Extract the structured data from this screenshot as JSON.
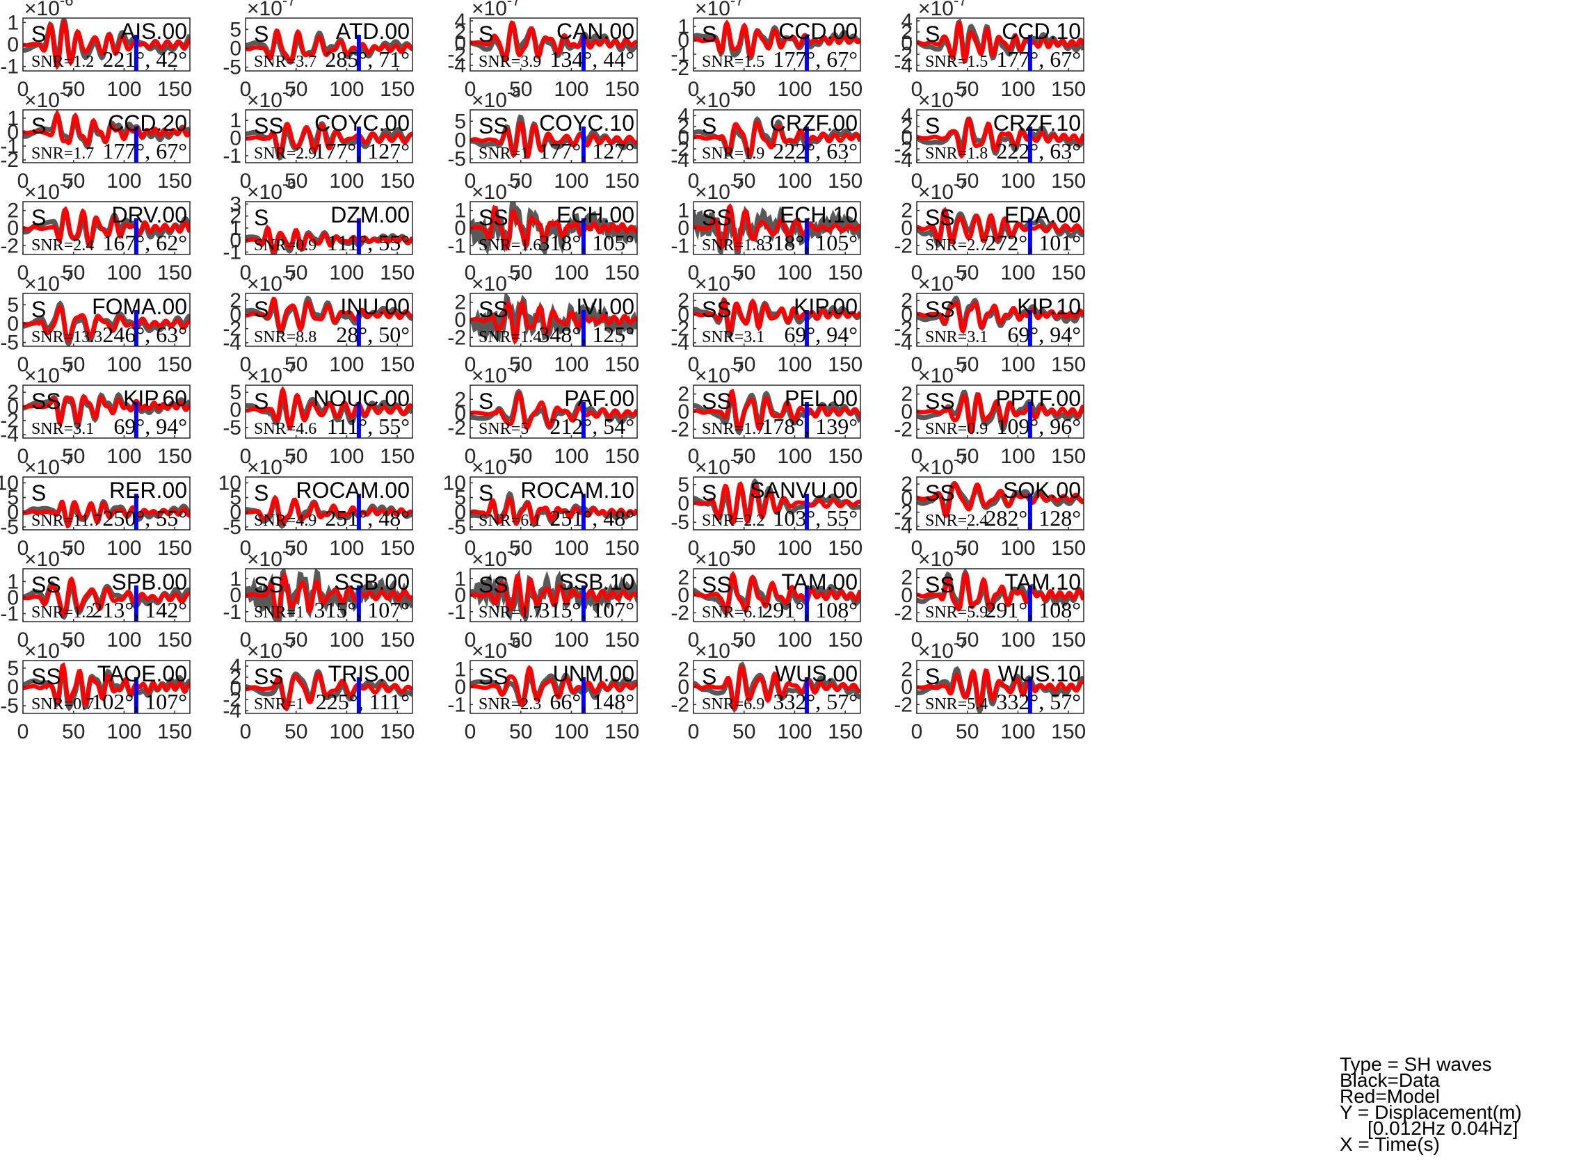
{
  "chart_data": {
    "type": "line",
    "xlim": [
      0,
      165
    ],
    "xticks": [
      0,
      50,
      100,
      150
    ],
    "colors": {
      "data": "#595959",
      "model": "#ff0000",
      "marker": "#0000ff"
    },
    "legend": {
      "lines": [
        "Type = SH waves",
        "Black=Data",
        "Red=Model",
        "Y = Displacement(m)",
        "[0.012Hz 0.04Hz]",
        "X = Time(s)"
      ],
      "placement": "bottom-right"
    },
    "panels": [
      {
        "station": "AIS.00",
        "phase": "S",
        "snr": "SNR=1.2",
        "angles": "221°, 42°",
        "exp": "-6",
        "yticks": [
          "1",
          "0",
          "-1"
        ],
        "ylim": [
          -1.2,
          1.2
        ]
      },
      {
        "station": "ATD.00",
        "phase": "S",
        "snr": "SNR=3.7",
        "angles": "285°, 71°",
        "exp": "-7",
        "yticks": [
          "5",
          "0",
          "-5"
        ],
        "ylim": [
          -6,
          8
        ]
      },
      {
        "station": "CAN.00",
        "phase": "S",
        "snr": "SNR=3.9",
        "angles": "134°, 44°",
        "exp": "-7",
        "yticks": [
          "4",
          "2",
          "0",
          "-2",
          "-4"
        ],
        "ylim": [
          -5,
          4.5
        ]
      },
      {
        "station": "CCD.00",
        "phase": "S",
        "snr": "SNR=1.5",
        "angles": "177°, 67°",
        "exp": "-7",
        "yticks": [
          "1",
          "0",
          "-1",
          "-2"
        ],
        "ylim": [
          -2.2,
          1.6
        ]
      },
      {
        "station": "CCD.10",
        "phase": "S",
        "snr": "SNR=1.5",
        "angles": "177°, 67°",
        "exp": "-7",
        "yticks": [
          "4",
          "2",
          "0",
          "-2",
          "-4"
        ],
        "ylim": [
          -5,
          4.5
        ]
      },
      {
        "station": "CCD.20",
        "phase": "S",
        "snr": "SNR=1.7",
        "angles": "177°, 67°",
        "exp": "-7",
        "yticks": [
          "1",
          "0",
          "-1",
          "-2"
        ],
        "ylim": [
          -2.2,
          1.6
        ]
      },
      {
        "station": "COYC.00",
        "phase": "SS",
        "snr": "SNR=2.9",
        "angles": "177°, 127°",
        "exp": "-7",
        "yticks": [
          "1",
          "0",
          "-1"
        ],
        "ylim": [
          -1.4,
          1.6
        ]
      },
      {
        "station": "COYC.10",
        "phase": "SS",
        "snr": "SNR=1",
        "angles": "177°, 127°",
        "exp": "-8",
        "yticks": [
          "5",
          "0",
          "-5"
        ],
        "ylim": [
          -6,
          8
        ]
      },
      {
        "station": "CRZF.00",
        "phase": "S",
        "snr": "SNR=1.9",
        "angles": "222°, 63°",
        "exp": "-7",
        "yticks": [
          "4",
          "2",
          "0",
          "-2",
          "-4"
        ],
        "ylim": [
          -4.5,
          5
        ]
      },
      {
        "station": "CRZF.10",
        "phase": "S",
        "snr": "SNR=1.8",
        "angles": "222°, 63°",
        "exp": "-7",
        "yticks": [
          "4",
          "2",
          "0",
          "-2",
          "-4"
        ],
        "ylim": [
          -4.5,
          5
        ]
      },
      {
        "station": "DRV.00",
        "phase": "S",
        "snr": "SNR=2.4",
        "angles": "167°, 62°",
        "exp": "-7",
        "yticks": [
          "2",
          "0",
          "-2"
        ],
        "ylim": [
          -3,
          3
        ]
      },
      {
        "station": "DZM.00",
        "phase": "S",
        "snr": "SNR=0.9",
        "angles": "111°, 55°",
        "exp": "-6",
        "yticks": [
          "3",
          "2",
          "1",
          "0",
          "-1"
        ],
        "ylim": [
          -1.2,
          3.2
        ]
      },
      {
        "station": "ECH.00",
        "phase": "SS",
        "snr": "SNR=1.6",
        "angles": "318°, 105°",
        "exp": "-7",
        "yticks": [
          "1",
          "0",
          "-1"
        ],
        "ylim": [
          -1.5,
          1.5
        ]
      },
      {
        "station": "ECH.10",
        "phase": "SS",
        "snr": "SNR=1.8",
        "angles": "318°, 105°",
        "exp": "-7",
        "yticks": [
          "1",
          "0",
          "-1"
        ],
        "ylim": [
          -1.5,
          1.5
        ]
      },
      {
        "station": "EDA.00",
        "phase": "SS",
        "snr": "SNR=2.7",
        "angles": "272°, 101°",
        "exp": "-7",
        "yticks": [
          "2",
          "0",
          "-2"
        ],
        "ylim": [
          -3,
          3
        ]
      },
      {
        "station": "FOMA.00",
        "phase": "S",
        "snr": "SNR=13.3",
        "angles": "246°, 63°",
        "exp": "-7",
        "yticks": [
          "5",
          "0",
          "-5"
        ],
        "ylim": [
          -6,
          8
        ]
      },
      {
        "station": "INU.00",
        "phase": "S",
        "snr": "SNR=8.8",
        "angles": "28°, 50°",
        "exp": "-7",
        "yticks": [
          "2",
          "0",
          "-2",
          "-4"
        ],
        "ylim": [
          -4.5,
          3
        ]
      },
      {
        "station": "IVI.00",
        "phase": "SS",
        "snr": "SNR=1.4",
        "angles": "348°, 125°",
        "exp": "-7",
        "yticks": [
          "2",
          "0",
          "-2"
        ],
        "ylim": [
          -3,
          3
        ]
      },
      {
        "station": "KIP.00",
        "phase": "SS",
        "snr": "SNR=3.1",
        "angles": "69°, 94°",
        "exp": "-7",
        "yticks": [
          "2",
          "0",
          "-2",
          "-4"
        ],
        "ylim": [
          -4.5,
          3
        ]
      },
      {
        "station": "KIP.10",
        "phase": "SS",
        "snr": "SNR=3.1",
        "angles": "69°, 94°",
        "exp": "-7",
        "yticks": [
          "2",
          "0",
          "-2",
          "-4"
        ],
        "ylim": [
          -4.5,
          3
        ]
      },
      {
        "station": "KIP.60",
        "phase": "SS",
        "snr": "SNR=3.1",
        "angles": "69°, 94°",
        "exp": "-7",
        "yticks": [
          "2",
          "0",
          "-2",
          "-4"
        ],
        "ylim": [
          -4.5,
          3
        ]
      },
      {
        "station": "NOUC.00",
        "phase": "S",
        "snr": "SNR=4.6",
        "angles": "111°, 55°",
        "exp": "-7",
        "yticks": [
          "5",
          "0",
          "-5"
        ],
        "ylim": [
          -8,
          7
        ]
      },
      {
        "station": "PAF.00",
        "phase": "S",
        "snr": "SNR=5",
        "angles": "212°, 54°",
        "exp": "-7",
        "yticks": [
          "2",
          "0",
          "-2"
        ],
        "ylim": [
          -3.5,
          4
        ]
      },
      {
        "station": "PEL.00",
        "phase": "SS",
        "snr": "SNR=1.7",
        "angles": "178°, 139°",
        "exp": "-7",
        "yticks": [
          "2",
          "0",
          "-2"
        ],
        "ylim": [
          -3,
          3
        ]
      },
      {
        "station": "PPTF.00",
        "phase": "SS",
        "snr": "SNR=0.9",
        "angles": "109°, 96°",
        "exp": "-7",
        "yticks": [
          "2",
          "0",
          "-2"
        ],
        "ylim": [
          -3,
          3
        ]
      },
      {
        "station": "RER.00",
        "phase": "S",
        "snr": "SNR=11.7",
        "angles": "250°, 55°",
        "exp": "-7",
        "yticks": [
          "10",
          "5",
          "0",
          "-5"
        ],
        "ylim": [
          -6,
          12
        ]
      },
      {
        "station": "ROCAM.00",
        "phase": "S",
        "snr": "SNR=4.9",
        "angles": "251°, 48°",
        "exp": "-7",
        "yticks": [
          "10",
          "5",
          "0",
          "-5"
        ],
        "ylim": [
          -6,
          12
        ]
      },
      {
        "station": "ROCAM.10",
        "phase": "S",
        "snr": "SNR=6.1",
        "angles": "251°, 48°",
        "exp": "-7",
        "yticks": [
          "10",
          "5",
          "0",
          "-5"
        ],
        "ylim": [
          -6,
          12
        ]
      },
      {
        "station": "SANVU.00",
        "phase": "S",
        "snr": "SNR=2.2",
        "angles": "103°, 55°",
        "exp": "-7",
        "yticks": [
          "5",
          "0",
          "-5"
        ],
        "ylim": [
          -7,
          7
        ]
      },
      {
        "station": "SOK.00",
        "phase": "SS",
        "snr": "SNR=2.4",
        "angles": "282°, 128°",
        "exp": "-7",
        "yticks": [
          "2",
          "0",
          "-2",
          "-4"
        ],
        "ylim": [
          -4.5,
          3
        ]
      },
      {
        "station": "SPB.00",
        "phase": "SS",
        "snr": "SNR=1.2",
        "angles": "213°, 142°",
        "exp": "-7",
        "yticks": [
          "1",
          "0",
          "-1"
        ],
        "ylim": [
          -1.5,
          1.8
        ]
      },
      {
        "station": "SSB.00",
        "phase": "SS",
        "snr": "SNR=1",
        "angles": "315°, 107°",
        "exp": "-7",
        "yticks": [
          "1",
          "0",
          "-1"
        ],
        "ylim": [
          -1.6,
          1.6
        ]
      },
      {
        "station": "SSB.10",
        "phase": "SS",
        "snr": "SNR=1.7",
        "angles": "315°, 107°",
        "exp": "-7",
        "yticks": [
          "1",
          "0",
          "-1"
        ],
        "ylim": [
          -1.6,
          1.6
        ]
      },
      {
        "station": "TAM.00",
        "phase": "SS",
        "snr": "SNR=6.1",
        "angles": "291°, 108°",
        "exp": "-7",
        "yticks": [
          "2",
          "0",
          "-2"
        ],
        "ylim": [
          -3,
          3
        ]
      },
      {
        "station": "TAM.10",
        "phase": "SS",
        "snr": "SNR=5.9",
        "angles": "291°, 108°",
        "exp": "-7",
        "yticks": [
          "2",
          "0",
          "-2"
        ],
        "ylim": [
          -3,
          3
        ]
      },
      {
        "station": "TAOE.00",
        "phase": "SS",
        "snr": "SNR=0.7",
        "angles": "102°, 107°",
        "exp": "-7",
        "yticks": [
          "5",
          "0",
          "-5"
        ],
        "ylim": [
          -7,
          7
        ]
      },
      {
        "station": "TRIS.00",
        "phase": "SS",
        "snr": "SNR=1",
        "angles": "225°, 111°",
        "exp": "-7",
        "yticks": [
          "4",
          "2",
          "0",
          "-2",
          "-4"
        ],
        "ylim": [
          -4.5,
          5
        ]
      },
      {
        "station": "UNM.00",
        "phase": "SS",
        "snr": "SNR=2.3",
        "angles": "66°, 148°",
        "exp": "-6",
        "yticks": [
          "1",
          "0",
          "-1"
        ],
        "ylim": [
          -1.5,
          1.5
        ]
      },
      {
        "station": "WUS.00",
        "phase": "S",
        "snr": "SNR=6.9",
        "angles": "332°, 57°",
        "exp": "-7",
        "yticks": [
          "2",
          "0",
          "-2"
        ],
        "ylim": [
          -3,
          3
        ]
      },
      {
        "station": "WUS.10",
        "phase": "S",
        "snr": "SNR=5.4",
        "angles": "332°, 57°",
        "exp": "-7",
        "yticks": [
          "2",
          "0",
          "-2"
        ],
        "ylim": [
          -3,
          3
        ]
      }
    ]
  }
}
